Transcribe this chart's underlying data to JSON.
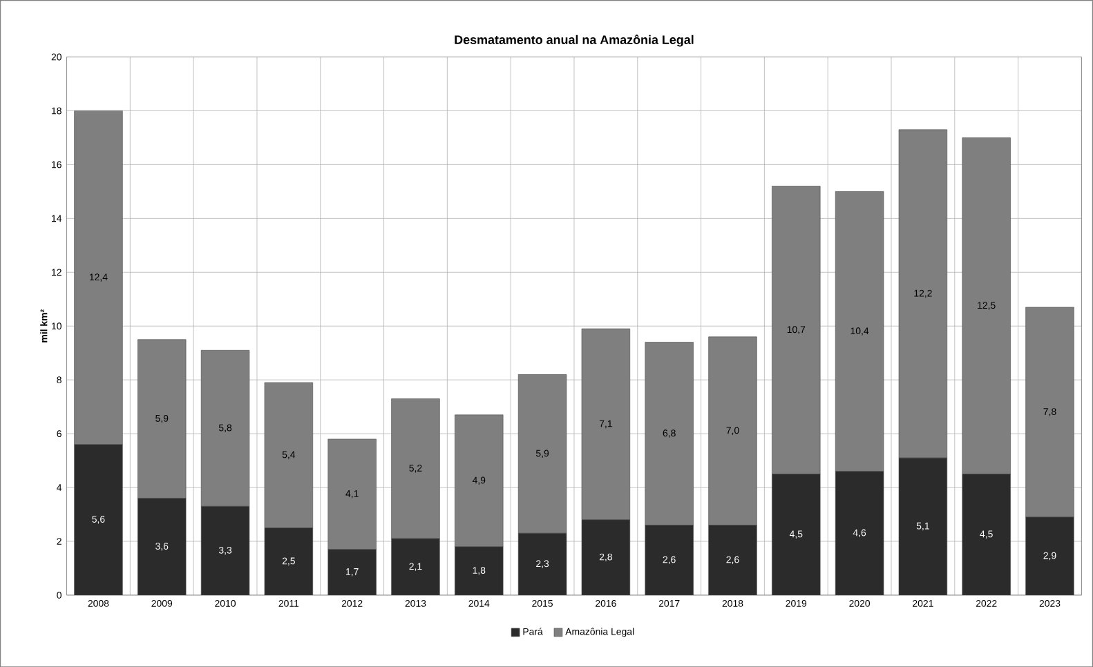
{
  "chart_data": {
    "type": "bar",
    "title": "Desmatamento anual na Amazônia Legal",
    "ylabel": "mil km²",
    "stacked": true,
    "categories": [
      "2008",
      "2009",
      "2010",
      "2011",
      "2012",
      "2013",
      "2014",
      "2015",
      "2016",
      "2017",
      "2018",
      "2019",
      "2020",
      "2021",
      "2022",
      "2023"
    ],
    "series": [
      {
        "name": "Pará",
        "color": "#2b2b2b",
        "values": [
          5.6,
          3.6,
          3.3,
          2.5,
          1.7,
          2.1,
          1.8,
          2.3,
          2.8,
          2.6,
          2.6,
          4.5,
          4.6,
          5.1,
          4.5,
          2.9
        ],
        "value_labels": [
          "5,6",
          "3,6",
          "3,3",
          "2,5",
          "1,7",
          "2,1",
          "1,8",
          "2,3",
          "2,8",
          "2,6",
          "2,6",
          "4,5",
          "4,6",
          "5,1",
          "4,5",
          "2,9"
        ]
      },
      {
        "name": "Amazônia Legal",
        "color": "#7f7f7f",
        "values": [
          12.4,
          5.9,
          5.8,
          5.4,
          4.1,
          5.2,
          4.9,
          5.9,
          7.1,
          6.8,
          7.0,
          10.7,
          10.4,
          12.2,
          12.5,
          7.8
        ],
        "value_labels": [
          "12,4",
          "5,9",
          "5,8",
          "5,4",
          "4,1",
          "5,2",
          "4,9",
          "5,9",
          "7,1",
          "6,8",
          "7,0",
          "10,7",
          "10,4",
          "12,2",
          "12,5",
          "7,8"
        ]
      }
    ],
    "ylim": [
      0,
      20
    ],
    "yticks": [
      0,
      2,
      4,
      6,
      8,
      10,
      12,
      14,
      16,
      18,
      20
    ],
    "grid": true,
    "legend": "bottom"
  }
}
